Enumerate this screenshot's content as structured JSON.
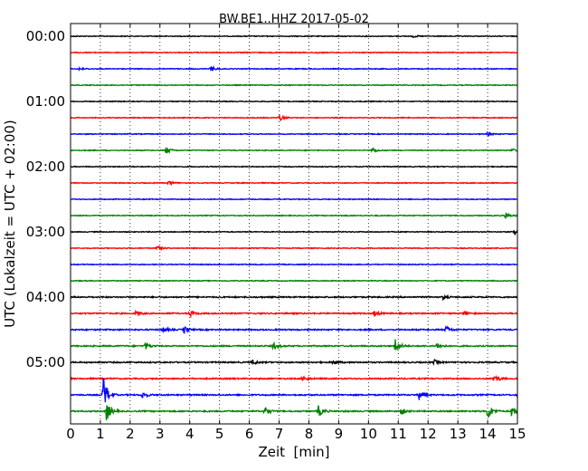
{
  "chart_data": {
    "type": "line",
    "title": "BW.BE1..HHZ 2017-05-02",
    "xlabel": "Zeit  [min]",
    "ylabel": "UTC (Lokalzeit = UTC + 02:00)",
    "xlim": [
      0,
      15
    ],
    "x_ticks": [
      "0",
      "1",
      "2",
      "3",
      "4",
      "5",
      "6",
      "7",
      "8",
      "9",
      "10",
      "11",
      "12",
      "13",
      "14",
      "15"
    ],
    "y_tick_labels": [
      "00:00",
      "01:00",
      "02:00",
      "03:00",
      "04:00",
      "05:00"
    ],
    "trace_interval_minutes": 15,
    "vertical_grid": true,
    "grid_style": "dotted",
    "series_colors": [
      "#000000",
      "#ff0000",
      "#0000ff",
      "#008000"
    ],
    "traces": [
      {
        "start": "00:00",
        "color": "#000000",
        "events": [
          {
            "t": 11.5,
            "amp": 1.2
          }
        ]
      },
      {
        "start": "00:15",
        "color": "#ff0000",
        "events": [
          {
            "t": 8.2,
            "amp": 1.0
          }
        ]
      },
      {
        "start": "00:30",
        "color": "#0000ff",
        "events": [
          {
            "t": 0.3,
            "amp": 2.0
          },
          {
            "t": 4.7,
            "amp": 3.0
          }
        ]
      },
      {
        "start": "00:45",
        "color": "#008000",
        "events": []
      },
      {
        "start": "01:00",
        "color": "#000000",
        "events": []
      },
      {
        "start": "01:15",
        "color": "#ff0000",
        "events": [
          {
            "t": 7.0,
            "amp": 5.0
          }
        ]
      },
      {
        "start": "01:30",
        "color": "#0000ff",
        "events": [
          {
            "t": 14.0,
            "amp": 2.0
          }
        ]
      },
      {
        "start": "01:45",
        "color": "#008000",
        "events": [
          {
            "t": 3.2,
            "amp": 4.0
          },
          {
            "t": 10.1,
            "amp": 4.0
          },
          {
            "t": 14.8,
            "amp": 2.0
          }
        ]
      },
      {
        "start": "02:00",
        "color": "#000000",
        "events": []
      },
      {
        "start": "02:15",
        "color": "#ff0000",
        "events": [
          {
            "t": 3.3,
            "amp": 3.0
          }
        ]
      },
      {
        "start": "02:30",
        "color": "#0000ff",
        "events": []
      },
      {
        "start": "02:45",
        "color": "#008000",
        "events": [
          {
            "t": 14.6,
            "amp": 4.0
          }
        ]
      },
      {
        "start": "03:00",
        "color": "#000000",
        "events": [
          {
            "t": 14.9,
            "amp": 4.0
          }
        ]
      },
      {
        "start": "03:15",
        "color": "#ff0000",
        "events": [
          {
            "t": 2.9,
            "amp": 3.0
          }
        ]
      },
      {
        "start": "03:30",
        "color": "#0000ff",
        "events": []
      },
      {
        "start": "03:45",
        "color": "#008000",
        "events": []
      },
      {
        "start": "04:00",
        "color": "#000000",
        "events": [
          {
            "t": 12.5,
            "amp": 2.0
          }
        ]
      },
      {
        "start": "04:15",
        "color": "#ff0000",
        "events": [
          {
            "t": 2.2,
            "amp": 3.5
          },
          {
            "t": 4.0,
            "amp": 3.5
          },
          {
            "t": 10.2,
            "amp": 3.0
          },
          {
            "t": 13.2,
            "amp": 2.5
          }
        ]
      },
      {
        "start": "04:30",
        "color": "#0000ff",
        "events": [
          {
            "t": 3.1,
            "amp": 3.0
          },
          {
            "t": 3.8,
            "amp": 4.0
          },
          {
            "t": 12.6,
            "amp": 4.0
          }
        ]
      },
      {
        "start": "04:45",
        "color": "#008000",
        "events": [
          {
            "t": 2.5,
            "amp": 4.0
          },
          {
            "t": 6.8,
            "amp": 4.0
          },
          {
            "t": 10.9,
            "amp": 9.0
          },
          {
            "t": 12.3,
            "amp": 3.5
          }
        ]
      },
      {
        "start": "05:00",
        "color": "#000000",
        "events": [
          {
            "t": 6.1,
            "amp": 3.0
          },
          {
            "t": 8.8,
            "amp": 3.0
          },
          {
            "t": 12.2,
            "amp": 2.5
          }
        ]
      },
      {
        "start": "05:15",
        "color": "#ff0000",
        "events": [
          {
            "t": 7.8,
            "amp": 3.0
          },
          {
            "t": 14.2,
            "amp": 5.0
          }
        ]
      },
      {
        "start": "05:30",
        "color": "#0000ff",
        "events": [
          {
            "t": 1.1,
            "amp": 22.0
          },
          {
            "t": 2.4,
            "amp": 4.0
          },
          {
            "t": 11.7,
            "amp": 5.0
          },
          {
            "t": 15.0,
            "amp": 4.0
          }
        ]
      },
      {
        "start": "05:45",
        "color": "#008000",
        "events": [
          {
            "t": 1.2,
            "amp": 12.0
          },
          {
            "t": 6.5,
            "amp": 6.0
          },
          {
            "t": 8.3,
            "amp": 7.0
          },
          {
            "t": 11.1,
            "amp": 4.0
          },
          {
            "t": 14.0,
            "amp": 10.0
          },
          {
            "t": 14.8,
            "amp": 6.0
          }
        ]
      }
    ]
  }
}
